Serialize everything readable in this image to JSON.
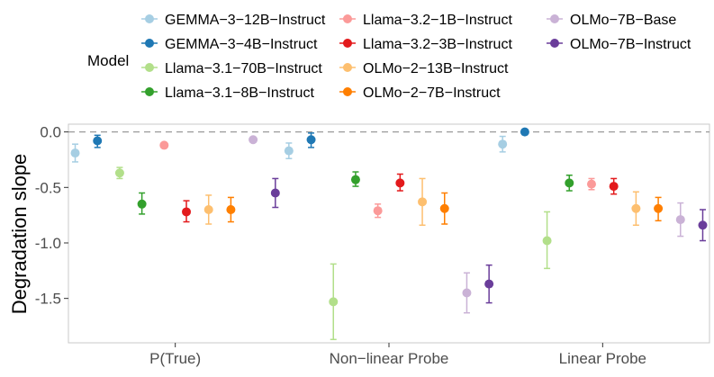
{
  "chart_data": {
    "type": "scatter",
    "subtype": "point-range",
    "title": "",
    "xlabel": "",
    "ylabel": "Degradation slope",
    "ylim": [
      -1.9,
      0.07
    ],
    "yticks": [
      0.0,
      -0.5,
      -1.0,
      -1.5
    ],
    "ytick_labels": [
      "0.0",
      "-0.5",
      "-1.0",
      "-1.5"
    ],
    "reference_line": 0,
    "grid": false,
    "legend_title": "Model",
    "legend_position": "top",
    "categories": [
      "P(True)",
      "Non−linear Probe",
      "Linear Probe"
    ],
    "series": [
      {
        "name": "GEMMA−3−12B−Instruct",
        "color": "#a6cee3",
        "values": [
          -0.19,
          -0.17,
          -0.11
        ],
        "lower": [
          -0.27,
          -0.24,
          -0.18
        ],
        "upper": [
          -0.11,
          -0.1,
          -0.04
        ]
      },
      {
        "name": "GEMMA−3−4B−Instruct",
        "color": "#1f78b4",
        "values": [
          -0.08,
          -0.07,
          0.0
        ],
        "lower": [
          -0.14,
          -0.14,
          -0.02
        ],
        "upper": [
          -0.03,
          -0.01,
          0.02
        ]
      },
      {
        "name": "Llama−3.1−70B−Instruct",
        "color": "#b2df8a",
        "values": [
          -0.37,
          -1.53,
          -0.98
        ],
        "lower": [
          -0.42,
          -1.87,
          -1.23
        ],
        "upper": [
          -0.32,
          -1.19,
          -0.72
        ]
      },
      {
        "name": "Llama−3.1−8B−Instruct",
        "color": "#33a02c",
        "values": [
          -0.65,
          -0.43,
          -0.46
        ],
        "lower": [
          -0.74,
          -0.49,
          -0.53
        ],
        "upper": [
          -0.55,
          -0.36,
          -0.39
        ]
      },
      {
        "name": "Llama−3.2−1B−Instruct",
        "color": "#fb9a99",
        "values": [
          -0.12,
          -0.71,
          -0.47
        ],
        "lower": [
          -0.14,
          -0.77,
          -0.52
        ],
        "upper": [
          -0.1,
          -0.65,
          -0.42
        ]
      },
      {
        "name": "Llama−3.2−3B−Instruct",
        "color": "#e31a1c",
        "values": [
          -0.72,
          -0.46,
          -0.49
        ],
        "lower": [
          -0.81,
          -0.53,
          -0.56
        ],
        "upper": [
          -0.62,
          -0.38,
          -0.42
        ]
      },
      {
        "name": "OLMo−2−13B−Instruct",
        "color": "#fdbf6f",
        "values": [
          -0.7,
          -0.63,
          -0.69
        ],
        "lower": [
          -0.83,
          -0.84,
          -0.84
        ],
        "upper": [
          -0.57,
          -0.42,
          -0.54
        ]
      },
      {
        "name": "OLMo−2−7B−Instruct",
        "color": "#ff7f00",
        "values": [
          -0.7,
          -0.69,
          -0.69
        ],
        "lower": [
          -0.81,
          -0.83,
          -0.8
        ],
        "upper": [
          -0.59,
          -0.55,
          -0.59
        ]
      },
      {
        "name": "OLMo−7B−Base",
        "color": "#cab2d6",
        "values": [
          -0.07,
          -1.45,
          -0.79
        ],
        "lower": [
          -0.09,
          -1.63,
          -0.94
        ],
        "upper": [
          -0.05,
          -1.27,
          -0.64
        ]
      },
      {
        "name": "OLMo−7B−Instruct",
        "color": "#6a3d9a",
        "values": [
          -0.55,
          -1.37,
          -0.84
        ],
        "lower": [
          -0.68,
          -1.54,
          -0.98
        ],
        "upper": [
          -0.42,
          -1.2,
          -0.7
        ]
      }
    ]
  }
}
